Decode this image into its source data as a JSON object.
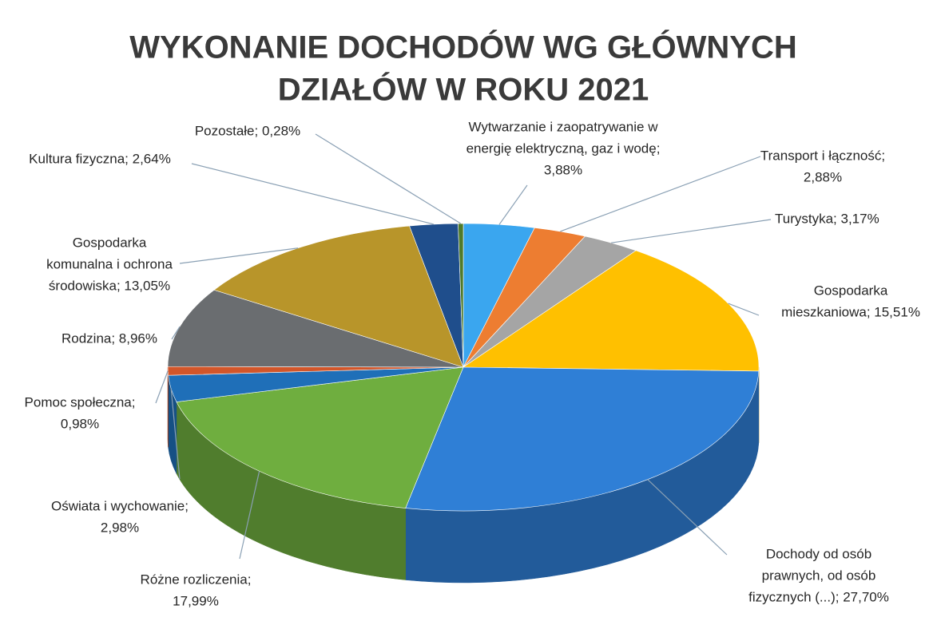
{
  "chart_data": {
    "type": "pie",
    "title": [
      "WYKONANIE DOCHODÓW WG GŁÓWNYCH",
      "DZIAŁÓW W ROKU 2021"
    ],
    "values": [
      3.88,
      2.88,
      3.17,
      15.51,
      27.7,
      17.99,
      2.98,
      0.98,
      8.96,
      13.05,
      2.64,
      0.28
    ],
    "value_labels": [
      [
        "Wytwarzanie i zaopatrywanie w",
        "energię elektryczną, gaz i wodę;",
        "3,88%"
      ],
      [
        "Transport i łączność;",
        "2,88%"
      ],
      [
        "Turystyka; 3,17%"
      ],
      [
        "Gospodarka",
        "mieszkaniowa; 15,51%"
      ],
      [
        "Dochody od osób",
        "prawnych, od osób",
        "fizycznych (...); 27,70%"
      ],
      [
        "Różne rozliczenia;",
        "17,99%"
      ],
      [
        "Oświata i wychowanie;",
        "2,98%"
      ],
      [
        "Pomoc społeczna;",
        "0,98%"
      ],
      [
        "Rodzina; 8,96%"
      ],
      [
        "Gospodarka",
        "komunalna i ochrona",
        "środowiska; 13,05%"
      ],
      [
        "Kultura fizyczna; 2,64%"
      ],
      [
        "Pozostałe; 0,28%"
      ]
    ],
    "colors": [
      "#3aa6ef",
      "#ed7d31",
      "#a5a5a5",
      "#ffc000",
      "#2f7fd6",
      "#6fae3f",
      "#1f6fb8",
      "#d2562a",
      "#6a6d70",
      "#b8952a",
      "#1f4e8c",
      "#4f7a2a"
    ]
  }
}
